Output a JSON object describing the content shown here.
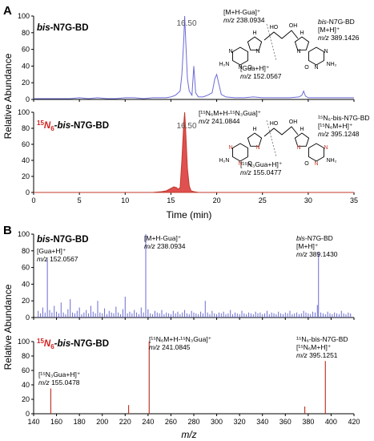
{
  "panels": {
    "A": {
      "letter": "A",
      "ylabel": "Relative Abundance",
      "xlabel": "Time (min)",
      "x_ticks": [
        "0",
        "5",
        "10",
        "15",
        "20",
        "25",
        "30",
        "35"
      ],
      "y_ticks": [
        "0",
        "20",
        "40",
        "60",
        "80",
        "100"
      ],
      "top": {
        "title_prefix": "bis",
        "title_suffix": "-N7G-BD",
        "peak_label": "16.50",
        "ann": {
          "mhgua_line1": "[M+H-Gua]⁺",
          "mhgua_mz": "m/z",
          "mhgua_val": "238.0934",
          "name_italic": "bis",
          "name_rest": "-N7G-BD",
          "mh": "[M+H]⁺",
          "mh_mz": "m/z",
          "mh_val": "389.1426",
          "guah": "[Gua+H]⁺",
          "guah_mz": "m/z",
          "guah_val": "152.0567"
        }
      },
      "bottom": {
        "title_iso": "15N6",
        "title_prefix": "-bis",
        "title_suffix": "-N7G-BD",
        "peak_label": "16.50",
        "ann": {
          "mhgua_line1": "[¹⁵N₆M+H-¹⁵N₃Gua]⁺",
          "mhgua_mz": "m/z",
          "mhgua_val": "241.0844",
          "name": "¹⁵N₆-bis-N7G-BD",
          "mh": "[¹⁵N₆M+H]⁺",
          "mh_mz": "m/z",
          "mh_val": "395.1248",
          "guah": "[¹⁵N₃Gua+H]⁺",
          "guah_mz": "m/z",
          "guah_val": "155.0477"
        }
      }
    },
    "B": {
      "letter": "B",
      "ylabel": "Relative Abundance",
      "xlabel": "m/z",
      "x_ticks": [
        "140",
        "160",
        "180",
        "200",
        "220",
        "240",
        "260",
        "280",
        "300",
        "320",
        "340",
        "360",
        "380",
        "400",
        "420"
      ],
      "y_ticks": [
        "0",
        "20",
        "40",
        "60",
        "80",
        "100"
      ],
      "top": {
        "title_prefix": "bis",
        "title_suffix": "-N7G-BD",
        "ann": {
          "guah": "[Gua+H]⁺",
          "guah_mz": "m/z",
          "guah_val": "152.0567",
          "mhgua": "[M+H-Gua]⁺",
          "mhgua_mz": "m/z",
          "mhgua_val": "238.0934",
          "name": "bis-N7G-BD",
          "mh": "[M+H]⁺",
          "mh_mz": "m/z",
          "mh_val": "389.1430"
        }
      },
      "bottom": {
        "title_iso": "15N6",
        "title_prefix": "-bis",
        "title_suffix": "-N7G-BD",
        "ann": {
          "guah": "[¹⁵N₃Gua+H]⁺",
          "guah_mz": "m/z",
          "guah_val": "155.0478",
          "mhgua": "[¹⁵N₆M+H-¹⁵N₃Gua]⁺",
          "mhgua_mz": "m/z",
          "mhgua_val": "241.0845",
          "name": "¹⁵N₆-bis-N7G-BD",
          "mh": "[¹⁵N₆M+H]⁺",
          "mh_mz": "m/z",
          "mh_val": "395.1251"
        }
      }
    },
    "structure": {
      "atoms": [
        "HO",
        "OH",
        "N",
        "N",
        "N",
        "N",
        "O",
        "O",
        "H₂N",
        "NH₂",
        "H",
        "H",
        "N",
        "N"
      ]
    }
  },
  "colors": {
    "blue_trace": "#6b6bd6",
    "red_trace": "#c0392b",
    "red_fill": "#e05050",
    "iso_text": "#d02020",
    "axis": "#000000"
  },
  "chart_data": [
    {
      "type": "line",
      "panel": "A-top",
      "title": "bis-N7G-BD",
      "xlabel": "Time (min)",
      "ylabel": "Relative Abundance",
      "xlim": [
        0,
        35
      ],
      "ylim": [
        0,
        100
      ],
      "x": [
        0,
        1,
        2,
        3,
        4,
        5,
        6,
        7,
        8,
        9,
        10,
        11,
        12,
        13,
        14,
        14.5,
        15,
        15.5,
        16,
        16.2,
        16.4,
        16.5,
        16.6,
        16.8,
        17,
        17.3,
        17.5,
        17.7,
        18,
        18.5,
        19,
        19.5,
        19.8,
        20,
        20.2,
        20.5,
        21,
        22,
        23,
        24,
        25,
        26,
        27,
        28,
        29,
        29.3,
        29.5,
        29.7,
        30,
        31,
        32,
        33,
        34,
        35
      ],
      "y": [
        1,
        1,
        1,
        1,
        1,
        2,
        1,
        2,
        1,
        1,
        2,
        2,
        1,
        2,
        2,
        2,
        3,
        5,
        10,
        30,
        70,
        100,
        75,
        25,
        10,
        5,
        40,
        8,
        3,
        3,
        5,
        8,
        25,
        30,
        20,
        6,
        3,
        2,
        2,
        3,
        2,
        2,
        2,
        2,
        3,
        5,
        10,
        4,
        2,
        2,
        2,
        2,
        2,
        2
      ],
      "annotations": [
        "16.50"
      ]
    },
    {
      "type": "area",
      "panel": "A-bottom",
      "title": "15N6-bis-N7G-BD",
      "xlabel": "Time (min)",
      "ylabel": "Relative Abundance",
      "xlim": [
        0,
        35
      ],
      "ylim": [
        0,
        100
      ],
      "x": [
        0,
        2,
        4,
        6,
        8,
        10,
        12,
        13,
        14,
        14.5,
        15,
        15.3,
        15.6,
        15.8,
        16,
        16.2,
        16.4,
        16.5,
        16.6,
        16.8,
        17,
        17.2,
        17.5,
        18,
        20,
        25,
        30,
        35
      ],
      "y": [
        0,
        0,
        0,
        0,
        0,
        0,
        0,
        0,
        1,
        2,
        5,
        7,
        6,
        4,
        6,
        40,
        85,
        100,
        80,
        30,
        8,
        2,
        1,
        0,
        0,
        0,
        0,
        0
      ],
      "annotations": [
        "16.50"
      ]
    },
    {
      "type": "bar",
      "panel": "B-top",
      "title": "bis-N7G-BD",
      "xlabel": "m/z",
      "ylabel": "Relative Abundance",
      "xlim": [
        140,
        420
      ],
      "ylim": [
        0,
        100
      ],
      "x": [
        144,
        146,
        148,
        150,
        152,
        154,
        156,
        158,
        160,
        162,
        164,
        166,
        168,
        170,
        172,
        174,
        176,
        178,
        180,
        182,
        184,
        186,
        188,
        190,
        192,
        194,
        196,
        198,
        200,
        202,
        204,
        206,
        208,
        210,
        212,
        214,
        216,
        218,
        220,
        222,
        224,
        226,
        228,
        230,
        232,
        234,
        236,
        238,
        240,
        242,
        244,
        246,
        248,
        250,
        252,
        254,
        256,
        258,
        260,
        262,
        264,
        266,
        268,
        270,
        272,
        274,
        276,
        278,
        280,
        282,
        284,
        286,
        288,
        290,
        292,
        294,
        296,
        298,
        300,
        302,
        304,
        306,
        308,
        310,
        312,
        314,
        316,
        318,
        320,
        322,
        324,
        326,
        328,
        330,
        332,
        334,
        336,
        338,
        340,
        342,
        344,
        346,
        348,
        350,
        352,
        354,
        356,
        358,
        360,
        362,
        364,
        366,
        368,
        370,
        372,
        374,
        376,
        378,
        380,
        382,
        384,
        386,
        388,
        389,
        391,
        393,
        395,
        397,
        399,
        401,
        403,
        405,
        407,
        409,
        411,
        413,
        415,
        417
      ],
      "y": [
        8,
        5,
        12,
        6,
        70,
        9,
        6,
        14,
        7,
        5,
        18,
        6,
        4,
        10,
        22,
        6,
        5,
        8,
        12,
        4,
        6,
        9,
        5,
        14,
        7,
        5,
        20,
        6,
        5,
        11,
        4,
        8,
        6,
        5,
        13,
        6,
        4,
        10,
        25,
        5,
        7,
        5,
        9,
        6,
        4,
        12,
        6,
        100,
        10,
        5,
        4,
        8,
        6,
        5,
        9,
        4,
        6,
        5,
        4,
        8,
        5,
        7,
        4,
        6,
        9,
        5,
        4,
        8,
        6,
        5,
        4,
        7,
        5,
        20,
        6,
        4,
        8,
        5,
        4,
        6,
        5,
        7,
        4,
        5,
        9,
        4,
        6,
        5,
        4,
        8,
        5,
        4,
        6,
        5,
        4,
        7,
        5,
        6,
        4,
        5,
        8,
        4,
        6,
        5,
        4,
        7,
        5,
        4,
        6,
        5,
        8,
        4,
        5,
        6,
        4,
        5,
        8,
        6,
        5,
        4,
        7,
        6,
        15,
        78,
        6,
        5,
        4,
        7,
        5,
        4,
        6,
        5,
        4,
        8,
        5,
        4,
        6,
        5
      ],
      "annotations": [
        "[Gua+H]⁺ m/z 152.0567",
        "[M+H-Gua]⁺ m/z 238.0934",
        "bis-N7G-BD [M+H]⁺ m/z 389.1430"
      ]
    },
    {
      "type": "bar",
      "panel": "B-bottom",
      "title": "15N6-bis-N7G-BD",
      "xlabel": "m/z",
      "ylabel": "Relative Abundance",
      "xlim": [
        140,
        420
      ],
      "ylim": [
        0,
        100
      ],
      "x": [
        155,
        223,
        241,
        377,
        395
      ],
      "y": [
        35,
        12,
        100,
        10,
        73
      ],
      "annotations": [
        "[¹⁵N₃Gua+H]⁺ m/z 155.0478",
        "[¹⁵N₆M+H-¹⁵N₃Gua]⁺ m/z 241.0845",
        "¹⁵N₆-bis-N7G-BD [¹⁵N₆M+H]⁺ m/z 395.1251"
      ]
    }
  ]
}
